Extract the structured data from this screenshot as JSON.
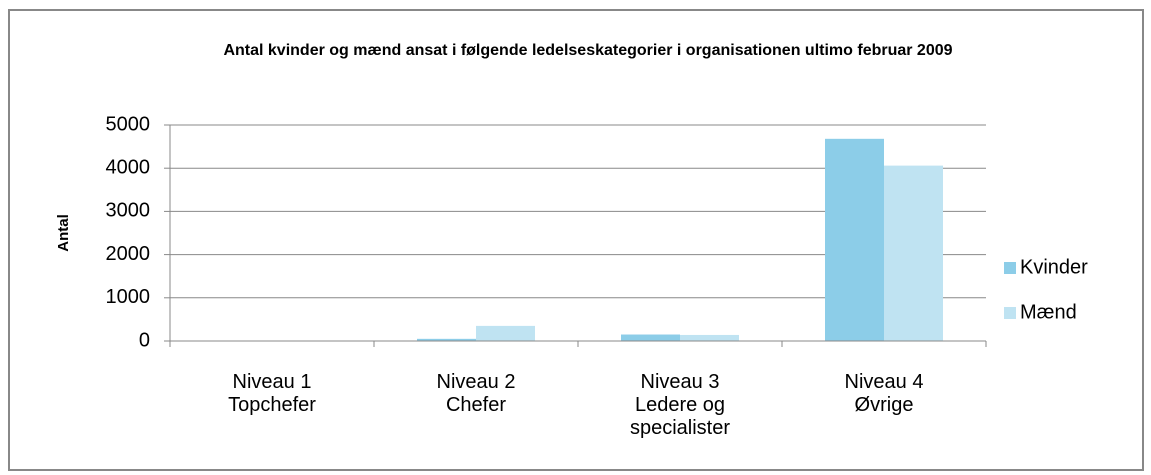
{
  "chart_data": {
    "type": "bar",
    "title": "Antal kvinder og mænd ansat i følgende ledelseskategorier i organisationen ultimo februar 2009",
    "y_label": "Antal",
    "categories": [
      [
        "Niveau 1",
        "Topchefer"
      ],
      [
        "Niveau 2",
        "Chefer"
      ],
      [
        "Niveau 3",
        "Ledere og",
        "specialister"
      ],
      [
        "Niveau 4",
        "Øvrige"
      ]
    ],
    "series": [
      {
        "name": "Kvinder",
        "color": "#8ccde8",
        "values": [
          2,
          50,
          150,
          4680
        ]
      },
      {
        "name": "Mænd",
        "color": "#bfe3f2",
        "values": [
          8,
          350,
          140,
          4060
        ]
      }
    ],
    "ylim": [
      0,
      5000
    ],
    "yticks": [
      0,
      1000,
      2000,
      3000,
      4000,
      5000
    ],
    "grid": true,
    "legend": "right"
  }
}
